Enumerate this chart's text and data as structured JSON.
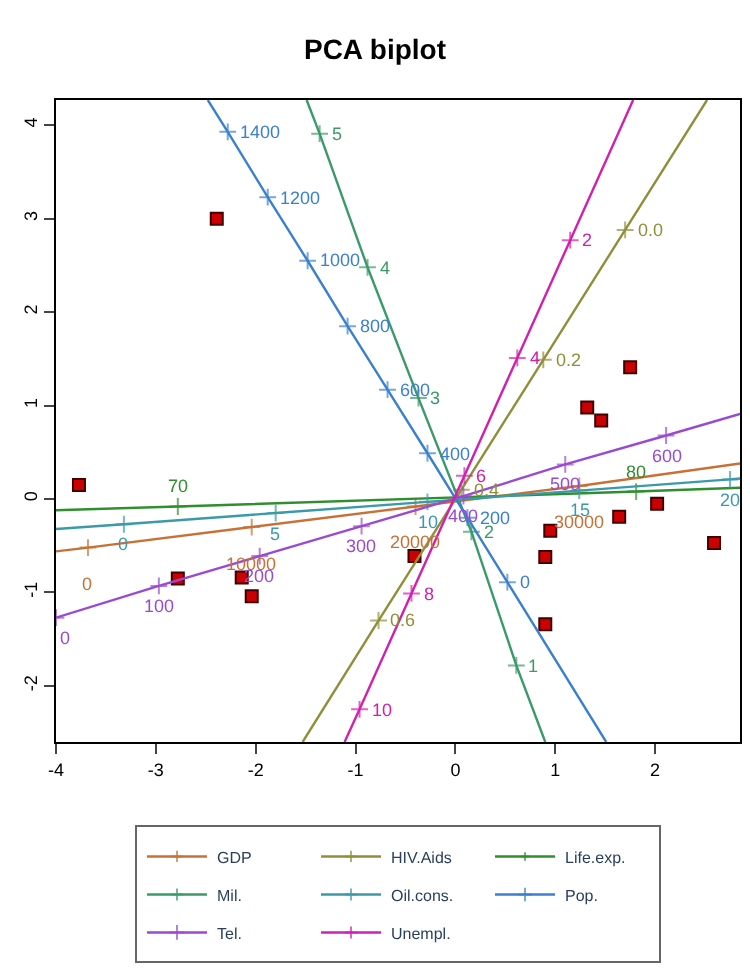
{
  "chart_data": {
    "type": "scatter",
    "title": "PCA biplot",
    "xlim": [
      -4,
      2.85
    ],
    "ylim": [
      -2.6,
      4.27
    ],
    "xticks": [
      -4,
      -3,
      -2,
      -1,
      0,
      1,
      2
    ],
    "yticks": [
      -2,
      -1,
      0,
      1,
      2,
      3,
      4
    ],
    "legend": "bottom",
    "series": [
      {
        "color": "#cc0000",
        "marker": "square",
        "x": [
          -3.77,
          -2.39,
          -2.78,
          -2.14,
          -2.04,
          -0.41,
          0.95,
          0.9,
          0.9,
          1.64,
          2.02,
          2.59,
          1.75,
          1.32,
          1.46
        ],
        "values": [
          0.15,
          3.0,
          -0.85,
          -0.84,
          -1.04,
          -0.61,
          -0.34,
          -0.62,
          -1.34,
          -0.19,
          -0.05,
          -0.47,
          1.41,
          0.98,
          0.84
        ]
      },
      {
        "type": "line",
        "name": "GDP",
        "color": "#c87137",
        "marker": "cross",
        "x": [
          -4,
          -3.68,
          -2.04,
          -0.4,
          1.24,
          2.85
        ],
        "values": [
          -0.56,
          -0.52,
          -0.3,
          -0.08,
          0.14,
          0.38
        ]
      },
      {
        "type": "line",
        "name": "HIV.Aids",
        "color": "#8f8f3a",
        "marker": "cross",
        "x": [
          -1.53,
          -0.77,
          0.06,
          0.88,
          1.7,
          2.52
        ],
        "values": [
          -2.6,
          -1.3,
          0.1,
          1.49,
          2.88,
          4.27
        ]
      },
      {
        "type": "line",
        "name": "Life.exp.",
        "color": "#2f8f2f",
        "marker": "cross",
        "x": [
          -4,
          -2.78,
          1.81,
          2.85
        ],
        "values": [
          -0.12,
          -0.08,
          0.08,
          0.12
        ]
      },
      {
        "type": "line",
        "name": "Mil.",
        "color": "#3a9a6a",
        "marker": "cross",
        "x": [
          -1.49,
          -1.36,
          -0.88,
          -0.37,
          0.16,
          0.61,
          0.9
        ],
        "values": [
          4.27,
          3.91,
          2.48,
          1.08,
          -0.35,
          -1.78,
          -2.6
        ]
      },
      {
        "type": "line",
        "name": "Oil.cons.",
        "color": "#3a9aaa",
        "marker": "cross",
        "x": [
          -4,
          -3.32,
          -1.8,
          -0.28,
          1.24,
          2.75,
          2.85
        ],
        "values": [
          -0.32,
          -0.27,
          -0.15,
          -0.03,
          0.09,
          0.21,
          0.22
        ]
      },
      {
        "type": "line",
        "name": "Pop.",
        "color": "#3a80d0",
        "marker": "cross",
        "x": [
          -2.48,
          -2.28,
          -1.88,
          -1.48,
          -1.08,
          -0.68,
          -0.28,
          0.12,
          0.52,
          1.51
        ],
        "values": [
          4.27,
          3.93,
          3.23,
          2.55,
          1.85,
          1.17,
          0.49,
          -0.2,
          -0.89,
          -2.6
        ]
      },
      {
        "type": "line",
        "name": "Tel.",
        "color": "#9a4ad0",
        "marker": "cross",
        "x": [
          -4.0,
          -2.97,
          -1.96,
          -0.94,
          0.08,
          1.1,
          2.11,
          2.85
        ],
        "values": [
          -1.27,
          -0.93,
          -0.61,
          -0.29,
          0.03,
          0.37,
          0.68,
          0.91
        ]
      },
      {
        "type": "line",
        "name": "Unempl.",
        "color": "#d020b0",
        "marker": "cross",
        "x": [
          -1.11,
          -0.96,
          -0.44,
          0.09,
          0.62,
          1.15,
          1.78
        ],
        "values": [
          -2.6,
          -2.25,
          -1.01,
          0.25,
          1.51,
          2.77,
          4.27
        ]
      }
    ],
    "annotations": [
      {
        "text": "0",
        "x": -3.68,
        "y": -0.52
      },
      {
        "text": "10000",
        "x": -2.04,
        "y": -0.3
      },
      {
        "text": "20000",
        "x": -0.4,
        "y": -0.08
      },
      {
        "text": "30000",
        "x": 1.24,
        "y": 0.14
      },
      {
        "text": "0.6",
        "x": -0.77,
        "y": -1.3
      },
      {
        "text": "0.4",
        "x": 0.06,
        "y": 0.1
      },
      {
        "text": "0.2",
        "x": 0.88,
        "y": 1.49
      },
      {
        "text": "0.0",
        "x": 1.7,
        "y": 2.88
      },
      {
        "text": "70",
        "x": -2.78,
        "y": -0.08
      },
      {
        "text": "80",
        "x": 1.81,
        "y": 0.08
      },
      {
        "text": "5",
        "x": -1.36,
        "y": 3.91
      },
      {
        "text": "4",
        "x": -0.88,
        "y": 2.48
      },
      {
        "text": "3",
        "x": -0.37,
        "y": 1.08
      },
      {
        "text": "2",
        "x": 0.16,
        "y": -0.35
      },
      {
        "text": "1",
        "x": 0.61,
        "y": -1.78
      },
      {
        "text": "0",
        "x": -3.32,
        "y": -0.27
      },
      {
        "text": "5",
        "x": -1.8,
        "y": -0.15
      },
      {
        "text": "10",
        "x": -0.28,
        "y": -0.03
      },
      {
        "text": "15",
        "x": 1.24,
        "y": 0.09
      },
      {
        "text": "20",
        "x": 2.75,
        "y": 0.21
      },
      {
        "text": "1400",
        "x": -2.28,
        "y": 3.93
      },
      {
        "text": "1200",
        "x": -1.88,
        "y": 3.23
      },
      {
        "text": "1000",
        "x": -1.48,
        "y": 2.55
      },
      {
        "text": "800",
        "x": -1.08,
        "y": 1.85
      },
      {
        "text": "600",
        "x": -0.68,
        "y": 1.17
      },
      {
        "text": "400",
        "x": -0.28,
        "y": 0.49
      },
      {
        "text": "200",
        "x": 0.12,
        "y": -0.2
      },
      {
        "text": "0",
        "x": 0.52,
        "y": -0.89
      },
      {
        "text": "0",
        "x": -4.0,
        "y": -1.27
      },
      {
        "text": "100",
        "x": -2.97,
        "y": -0.93
      },
      {
        "text": "200",
        "x": -1.96,
        "y": -0.61
      },
      {
        "text": "300",
        "x": -0.94,
        "y": -0.29
      },
      {
        "text": "400",
        "x": 0.08,
        "y": 0.03
      },
      {
        "text": "500",
        "x": 1.1,
        "y": 0.37
      },
      {
        "text": "600",
        "x": 2.11,
        "y": 0.68
      },
      {
        "text": "10",
        "x": -0.96,
        "y": -2.25
      },
      {
        "text": "8",
        "x": -0.44,
        "y": -1.01
      },
      {
        "text": "6",
        "x": 0.09,
        "y": 0.25
      },
      {
        "text": "4",
        "x": 0.62,
        "y": 1.51
      },
      {
        "text": "2",
        "x": 1.15,
        "y": 2.77
      }
    ]
  }
}
